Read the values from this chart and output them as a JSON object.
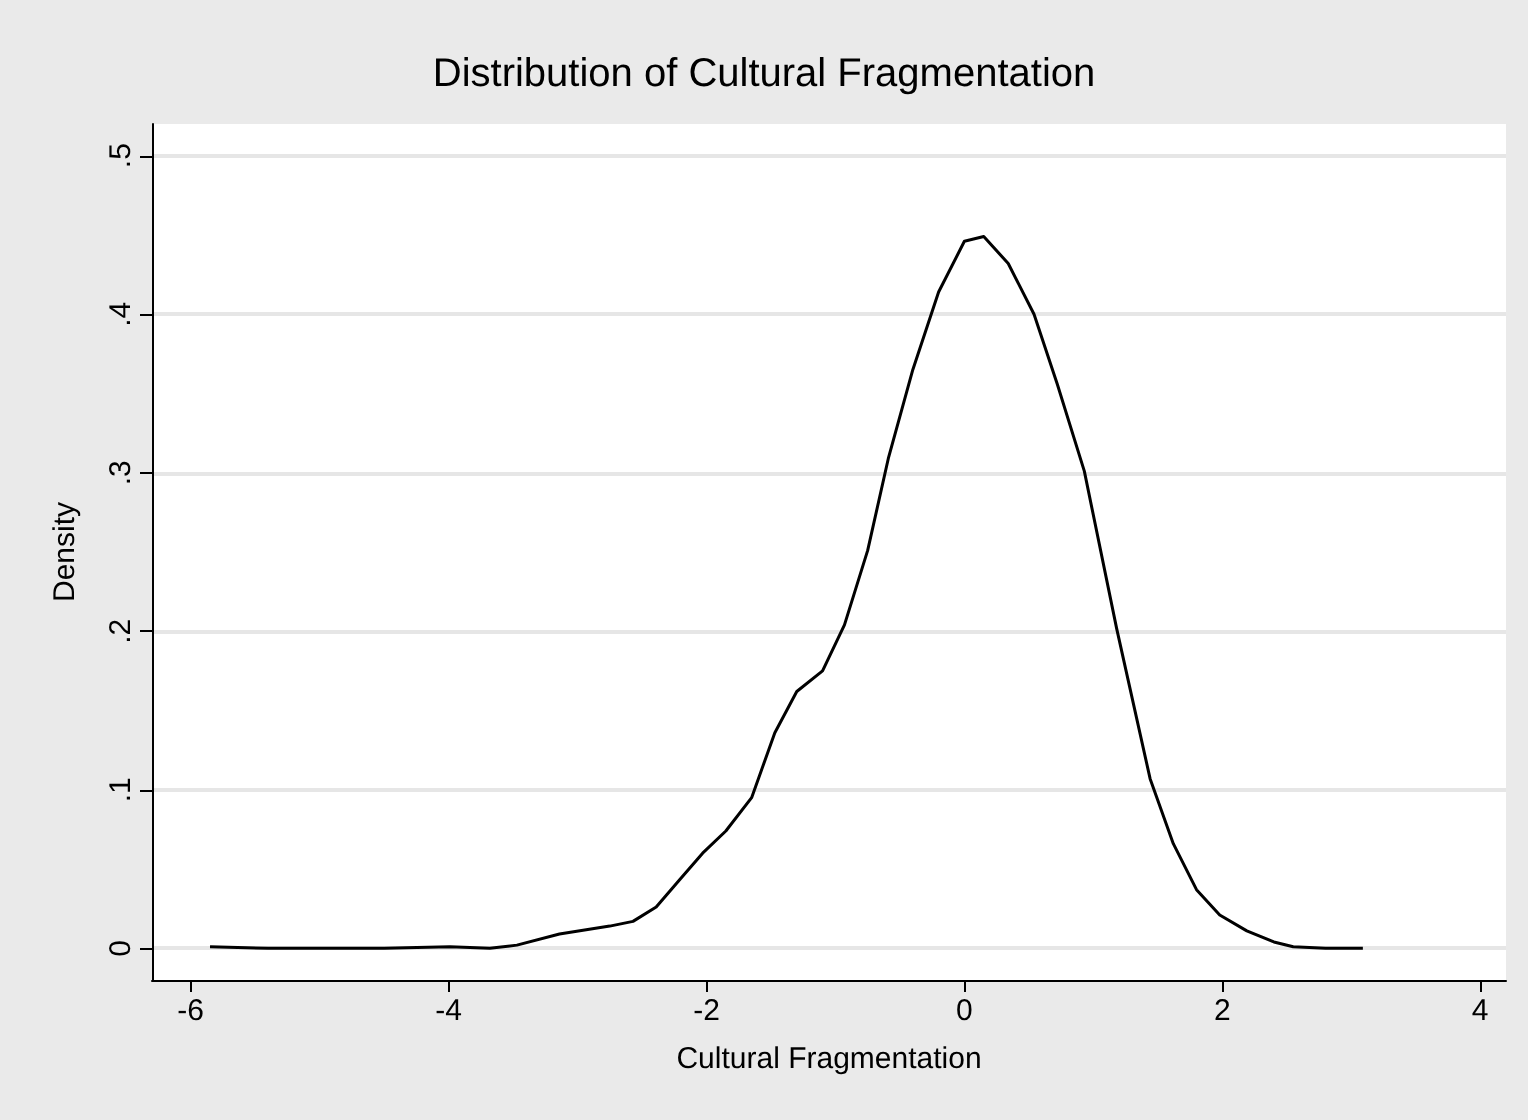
{
  "chart_data": {
    "type": "line",
    "title": "Distribution of Cultural Fragmentation",
    "xlabel": "Cultural Fragmentation",
    "ylabel": "Density",
    "x": [
      -5.85,
      -5.4,
      -5.0,
      -4.5,
      -3.99,
      -3.68,
      -3.47,
      -3.14,
      -2.75,
      -2.57,
      -2.39,
      -2.2,
      -2.03,
      -1.85,
      -1.65,
      -1.47,
      -1.3,
      -1.1,
      -0.93,
      -0.75,
      -0.59,
      -0.4,
      -0.2,
      0.0,
      0.15,
      0.34,
      0.54,
      0.72,
      0.93,
      1.18,
      1.44,
      1.62,
      1.8,
      1.98,
      2.19,
      2.4,
      2.55,
      2.8,
      3.09
    ],
    "series": [
      {
        "color": "#000000",
        "values": [
          0.001,
          0.0,
          0.0,
          0.0,
          0.001,
          0.0,
          0.002,
          0.009,
          0.014,
          0.017,
          0.026,
          0.044,
          0.06,
          0.074,
          0.095,
          0.136,
          0.162,
          0.175,
          0.204,
          0.251,
          0.309,
          0.365,
          0.414,
          0.446,
          0.449,
          0.432,
          0.4,
          0.356,
          0.301,
          0.202,
          0.107,
          0.066,
          0.037,
          0.021,
          0.011,
          0.004,
          0.001,
          0.0,
          0.0
        ]
      }
    ],
    "xlim": [
      -6.3,
      4.2
    ],
    "xticks": [
      -6,
      -4,
      -2,
      0,
      2,
      4
    ],
    "ylim": [
      -0.02,
      0.52
    ],
    "yticks": [
      {
        "value": 0,
        "label": "0"
      },
      {
        "value": 0.1,
        "label": ".1"
      },
      {
        "value": 0.2,
        "label": ".2"
      },
      {
        "value": 0.3,
        "label": ".3"
      },
      {
        "value": 0.4,
        "label": ".4"
      },
      {
        "value": 0.5,
        "label": ".5"
      }
    ],
    "grid": "y",
    "marker": "none",
    "line_style": "solid"
  }
}
